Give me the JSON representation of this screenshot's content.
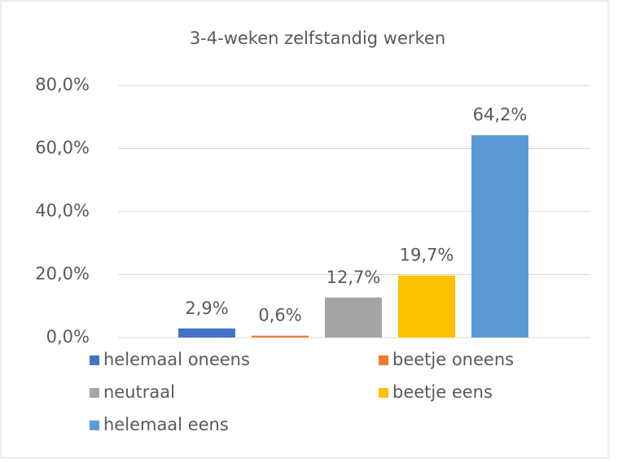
{
  "chart_data": {
    "type": "bar",
    "title": "3-4-weken zelfstandig werken",
    "series": [
      {
        "name": "helemaal oneens",
        "color": "#4472c4",
        "values": [
          2.9
        ],
        "value_labels": [
          "2,9%"
        ]
      },
      {
        "name": "beetje oneens",
        "color": "#ed7d31",
        "values": [
          0.6
        ],
        "value_labels": [
          "0,6%"
        ]
      },
      {
        "name": "neutraal",
        "color": "#a5a5a5",
        "values": [
          12.7
        ],
        "value_labels": [
          "12,7%"
        ]
      },
      {
        "name": "beetje eens",
        "color": "#ffc000",
        "values": [
          19.7
        ],
        "value_labels": [
          "19,7%"
        ]
      },
      {
        "name": "helemaal eens",
        "color": "#5b9bd5",
        "values": [
          64.2
        ],
        "value_labels": [
          "64,2%"
        ]
      }
    ],
    "ylim": [
      0,
      80
    ],
    "yticks": [
      {
        "value": 0,
        "label": "0,0%"
      },
      {
        "value": 20,
        "label": "20,0%"
      },
      {
        "value": 40,
        "label": "40,0%"
      },
      {
        "value": 60,
        "label": "60,0%"
      },
      {
        "value": 80,
        "label": "80,0%"
      }
    ],
    "grid": true,
    "legend": "bottom"
  }
}
